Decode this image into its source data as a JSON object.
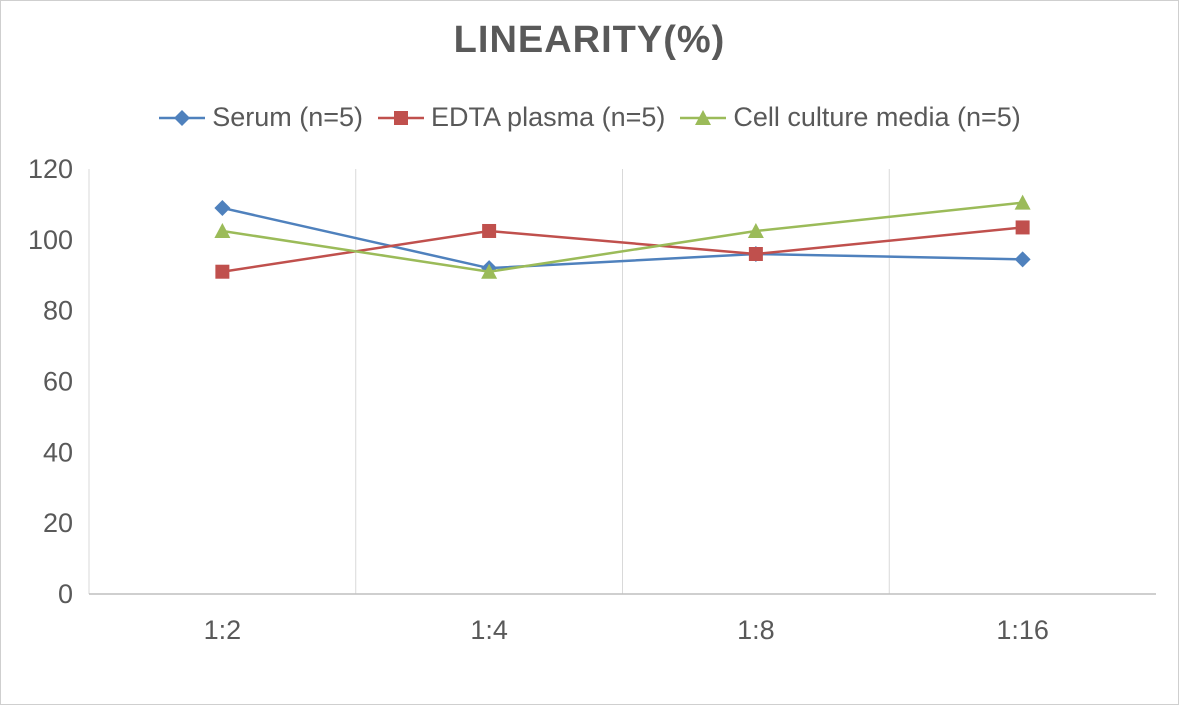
{
  "title": "LINEARITY(%)",
  "chart_data": {
    "type": "line",
    "title": "LINEARITY(%)",
    "categories": [
      "1:2",
      "1:4",
      "1:8",
      "1:16"
    ],
    "series": [
      {
        "name": "Serum (n=5)",
        "color": "#4F81BD",
        "marker": "diamond",
        "values": [
          109,
          92,
          96,
          94.5
        ]
      },
      {
        "name": "EDTA plasma (n=5)",
        "color": "#C0504D",
        "marker": "square",
        "values": [
          91,
          102.5,
          96,
          103.5
        ]
      },
      {
        "name": "Cell culture media (n=5)",
        "color": "#9BBB59",
        "marker": "triangle",
        "values": [
          102.5,
          91,
          102.5,
          110.5
        ]
      }
    ],
    "xlabel": "",
    "ylabel": "",
    "ylim": [
      0,
      120
    ],
    "yticks": [
      0,
      20,
      40,
      60,
      80,
      100,
      120
    ],
    "grid": "vertical-only",
    "gridline_color": "#d9d9d9",
    "axis_line_color": "#bfbfbf",
    "legend_position": "top"
  }
}
